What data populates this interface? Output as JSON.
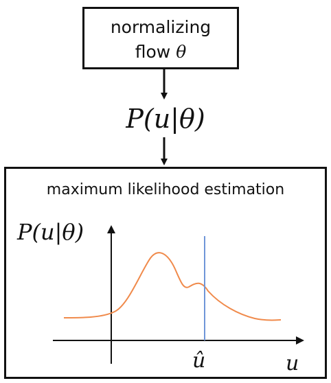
{
  "top_box": {
    "line1": "normalizing",
    "line2_prefix": "flow ",
    "line2_symbol": "θ"
  },
  "middle_formula": "P(u|θ)",
  "bottom_box": {
    "title": "maximum likelihood estimation",
    "y_label": "P(u|θ)",
    "x_label": "u",
    "marker_label": "û"
  },
  "colors": {
    "curve": "#f08a4b",
    "marker_line": "#6f96d8",
    "ink": "#111111"
  }
}
